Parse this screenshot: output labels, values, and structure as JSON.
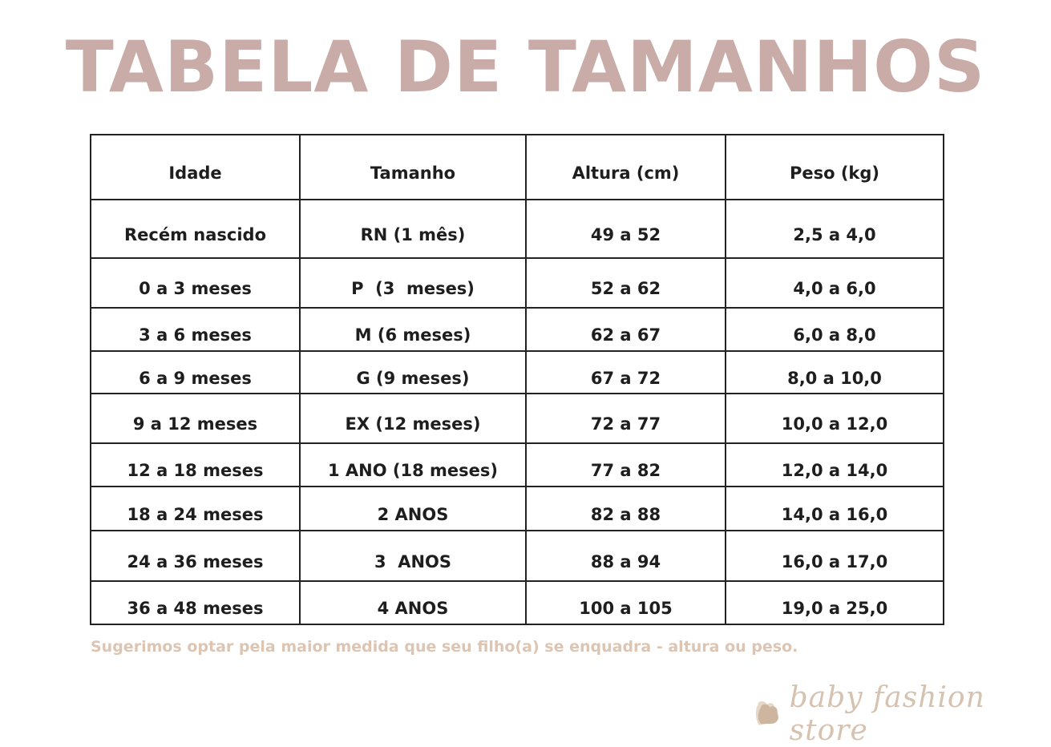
{
  "title": "TABELA DE TAMANHOS",
  "colors": {
    "title": "#c9aca8",
    "note": "#dcc5b3",
    "logo": "#d6c2b0",
    "border": "#222222"
  },
  "table": {
    "headers": [
      "Idade",
      "Tamanho",
      "Altura (cm)",
      "Peso (kg)"
    ],
    "rows": [
      [
        "Recém nascido",
        "RN (1 mês)",
        "49 a 52",
        "2,5 a 4,0"
      ],
      [
        "0 a 3 meses",
        "P  (3  meses)",
        "52 a 62",
        "4,0 a 6,0"
      ],
      [
        "3 a 6 meses",
        "M (6 meses)",
        "62 a 67",
        "6,0 a 8,0"
      ],
      [
        "6 a 9 meses",
        "G (9 meses)",
        "67 a 72",
        "8,0 a 10,0"
      ],
      [
        "9 a 12 meses",
        "EX (12 meses)",
        "72 a 77",
        "10,0 a 12,0"
      ],
      [
        "12 a 18 meses",
        "1 ANO (18 meses)",
        "77 a 82",
        "12,0 a 14,0"
      ],
      [
        "18 a 24 meses",
        "2 ANOS",
        "82 a 88",
        "14,0 a 16,0"
      ],
      [
        "24 a 36 meses",
        "3  ANOS",
        "88 a 94",
        "16,0 a 17,0"
      ],
      [
        "36 a 48 meses",
        "4 ANOS",
        "100 a 105",
        "19,0 a 25,0"
      ]
    ]
  },
  "note": "Sugerimos optar pela maior medida que seu  filho(a) se enquadra - altura ou peso.",
  "logo": {
    "text": "baby fashion store",
    "icon": "stacked-hearts-icon"
  }
}
